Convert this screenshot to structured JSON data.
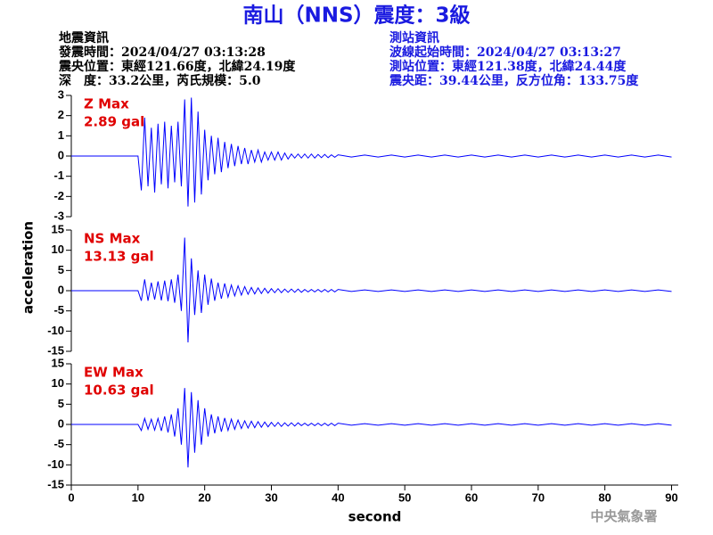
{
  "header": {
    "title": "南山（NNS）震度：3級",
    "event_info": [
      "地震資訊",
      "發震時間：2024/04/27 03:13:28",
      "震央位置：東經121.66度，北緯24.19度",
      "深　度：33.2公里，芮氏規模：5.0"
    ],
    "station_info": [
      "測站資訊",
      "波線起始時間：2024/04/27 03:13:27",
      "測站位置：東經121.38度，北緯24.44度",
      "震央距：39.44公里，反方位角：133.75度"
    ]
  },
  "footer": "中央氣象署",
  "chart_data": [
    {
      "type": "line",
      "label": "Z Max",
      "max_label": "2.89 gal",
      "label_color": "#e00000",
      "color": "#0000ff",
      "xlim": [
        0,
        91
      ],
      "ylim": [
        -3,
        3
      ],
      "yticks": [
        -3,
        -2,
        -1,
        0,
        1,
        2,
        3
      ],
      "x": [
        0,
        10,
        10.5,
        11,
        11.5,
        12,
        12.5,
        13,
        13.5,
        14,
        14.5,
        15,
        15.5,
        16,
        16.5,
        17,
        17.5,
        18,
        18.5,
        19,
        19.5,
        20,
        20.5,
        21,
        21.5,
        22,
        22.5,
        23,
        23.5,
        24,
        24.5,
        25,
        25.5,
        26,
        26.5,
        27,
        27.5,
        28,
        28.5,
        29,
        29.5,
        30,
        30.5,
        31,
        31.5,
        32,
        32.5,
        33,
        33.5,
        34,
        34.5,
        35,
        35.5,
        36,
        36.5,
        37,
        37.5,
        38,
        38.5,
        39,
        39.5,
        40,
        42,
        44,
        46,
        48,
        50,
        52,
        54,
        56,
        58,
        60,
        62,
        64,
        66,
        68,
        70,
        72,
        74,
        76,
        78,
        80,
        82,
        84,
        86,
        88,
        90
      ],
      "values": [
        0,
        0,
        -1.7,
        1.9,
        -1.5,
        1.4,
        -1.8,
        1.6,
        -1.4,
        1.7,
        -1.6,
        1.5,
        -1.3,
        1.7,
        -1.5,
        2.8,
        -2.5,
        2.89,
        -2.3,
        2.2,
        -1.9,
        1.3,
        -1.2,
        1.0,
        -0.9,
        0.9,
        -0.8,
        0.7,
        -0.6,
        0.6,
        -0.5,
        0.5,
        -0.4,
        0.4,
        -0.4,
        0.3,
        -0.3,
        0.3,
        -0.3,
        0.2,
        -0.2,
        0.2,
        -0.2,
        0.2,
        -0.2,
        0.15,
        -0.15,
        0.1,
        -0.1,
        0.1,
        -0.1,
        0.1,
        -0.1,
        0.1,
        -0.1,
        0.08,
        -0.08,
        0.08,
        -0.08,
        0.06,
        -0.06,
        0.06,
        -0.05,
        0.05,
        -0.05,
        0.05,
        -0.05,
        0.05,
        -0.05,
        0.05,
        -0.05,
        0.05,
        -0.05,
        0.05,
        -0.05,
        0.05,
        -0.05,
        0.05,
        -0.05,
        0.05,
        -0.05,
        0.05,
        -0.05,
        0.05,
        -0.05,
        0.05,
        -0.05
      ]
    },
    {
      "type": "line",
      "label": "NS Max",
      "max_label": "13.13 gal",
      "label_color": "#e00000",
      "color": "#0000ff",
      "ylabel": "acceleration",
      "xlim": [
        0,
        91
      ],
      "ylim": [
        -15,
        15
      ],
      "yticks": [
        -15,
        -10,
        -5,
        0,
        5,
        10,
        15
      ],
      "x": [
        0,
        10,
        10.5,
        11,
        11.5,
        12,
        12.5,
        13,
        13.5,
        14,
        14.5,
        15,
        15.5,
        16,
        16.5,
        17,
        17.5,
        18,
        18.5,
        19,
        19.5,
        20,
        20.5,
        21,
        21.5,
        22,
        22.5,
        23,
        23.5,
        24,
        24.5,
        25,
        25.5,
        26,
        26.5,
        27,
        27.5,
        28,
        28.5,
        29,
        29.5,
        30,
        30.5,
        31,
        31.5,
        32,
        32.5,
        33,
        33.5,
        34,
        34.5,
        35,
        35.5,
        36,
        36.5,
        37,
        37.5,
        38,
        38.5,
        39,
        39.5,
        40,
        42,
        44,
        46,
        48,
        50,
        52,
        54,
        56,
        58,
        60,
        62,
        64,
        66,
        68,
        70,
        72,
        74,
        76,
        78,
        80,
        82,
        84,
        86,
        88,
        90
      ],
      "values": [
        0,
        0,
        -2.5,
        2.8,
        -2.5,
        2,
        -2.2,
        2.3,
        -2.4,
        2.5,
        -2.6,
        2.8,
        -3,
        4,
        -5,
        13.13,
        -12.8,
        8,
        -6,
        5,
        -5.5,
        4,
        -3.5,
        3,
        -2.5,
        2,
        -2,
        1.8,
        -1.6,
        1.4,
        -1.3,
        1.2,
        -1.1,
        1,
        -0.9,
        0.8,
        -0.8,
        0.7,
        -0.7,
        0.6,
        -0.6,
        0.5,
        -0.5,
        0.5,
        -0.5,
        0.4,
        -0.4,
        0.4,
        -0.4,
        0.4,
        -0.4,
        0.3,
        -0.3,
        0.3,
        -0.3,
        0.3,
        -0.3,
        0.3,
        -0.3,
        0.3,
        -0.3,
        0.3,
        -0.2,
        0.2,
        -0.2,
        0.2,
        -0.2,
        0.2,
        -0.2,
        0.2,
        -0.2,
        0.2,
        -0.2,
        0.2,
        -0.2,
        0.2,
        -0.2,
        0.2,
        -0.2,
        0.2,
        -0.2,
        0.2,
        -0.2,
        0.2,
        -0.2,
        0.2,
        -0.2
      ]
    },
    {
      "type": "line",
      "label": "EW Max",
      "max_label": "10.63 gal",
      "label_color": "#e00000",
      "color": "#0000ff",
      "xlabel": "second",
      "xlim": [
        0,
        91
      ],
      "ylim": [
        -15,
        15
      ],
      "yticks": [
        -15,
        -10,
        -5,
        0,
        5,
        10,
        15
      ],
      "xticks": [
        0,
        10,
        20,
        30,
        40,
        50,
        60,
        70,
        80,
        90
      ],
      "x": [
        0,
        10,
        10.5,
        11,
        11.5,
        12,
        12.5,
        13,
        13.5,
        14,
        14.5,
        15,
        15.5,
        16,
        16.5,
        17,
        17.5,
        18,
        18.5,
        19,
        19.5,
        20,
        20.5,
        21,
        21.5,
        22,
        22.5,
        23,
        23.5,
        24,
        24.5,
        25,
        25.5,
        26,
        26.5,
        27,
        27.5,
        28,
        28.5,
        29,
        29.5,
        30,
        30.5,
        31,
        31.5,
        32,
        32.5,
        33,
        33.5,
        34,
        34.5,
        35,
        35.5,
        36,
        36.5,
        37,
        37.5,
        38,
        38.5,
        39,
        39.5,
        40,
        42,
        44,
        46,
        48,
        50,
        52,
        54,
        56,
        58,
        60,
        62,
        64,
        66,
        68,
        70,
        72,
        74,
        76,
        78,
        80,
        82,
        84,
        86,
        88,
        90
      ],
      "values": [
        0,
        0,
        -1.5,
        1.5,
        -1.2,
        1.3,
        -1.4,
        1.5,
        -1.6,
        2,
        -2,
        2.5,
        -3,
        4,
        -5,
        9,
        -10.63,
        8,
        -7,
        6,
        -5,
        4,
        -3,
        2.5,
        -2.2,
        2,
        -1.8,
        1.6,
        -1.5,
        1.3,
        -1.2,
        1.1,
        -1,
        0.9,
        -0.9,
        0.8,
        -0.8,
        0.7,
        -0.7,
        0.6,
        -0.6,
        0.5,
        -0.5,
        0.5,
        -0.5,
        0.4,
        -0.4,
        0.4,
        -0.4,
        0.4,
        -0.3,
        0.3,
        -0.3,
        0.3,
        -0.3,
        0.3,
        -0.3,
        0.3,
        -0.3,
        0.3,
        -0.3,
        0.3,
        -0.2,
        0.2,
        -0.2,
        0.2,
        -0.2,
        0.2,
        -0.2,
        0.2,
        -0.2,
        0.2,
        -0.2,
        0.2,
        -0.2,
        0.2,
        -0.2,
        0.2,
        -0.2,
        0.2,
        -0.2,
        0.2,
        -0.2,
        0.2,
        -0.2,
        0.2,
        -0.2
      ]
    }
  ]
}
